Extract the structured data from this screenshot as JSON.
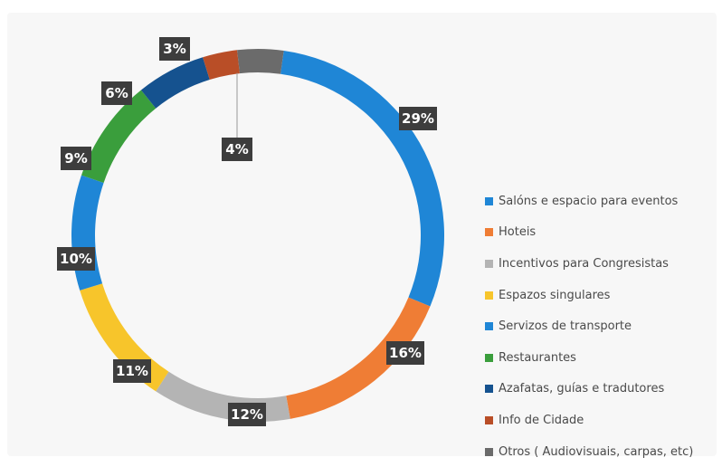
{
  "chart_data": {
    "type": "pie",
    "variant": "donut",
    "title": "",
    "legend_position": "right",
    "series": [
      {
        "name": "Salóns e espacio para eventos",
        "value": 29,
        "label": "29%",
        "color": "#1f86d6"
      },
      {
        "name": "Hoteis",
        "value": 16,
        "label": "16%",
        "color": "#ef7d35"
      },
      {
        "name": "Incentivos para Congresistas",
        "value": 12,
        "label": "12%",
        "color": "#b4b4b4"
      },
      {
        "name": "Espazos singulares",
        "value": 11,
        "label": "11%",
        "color": "#f7c52b"
      },
      {
        "name": "Servizos de transporte",
        "value": 10,
        "label": "10%",
        "color": "#1f86d6"
      },
      {
        "name": "Restaurantes",
        "value": 9,
        "label": "9%",
        "color": "#3a9e3c"
      },
      {
        "name": "Azafatas, guías e tradutores",
        "value": 6,
        "label": "6%",
        "color": "#15528f"
      },
      {
        "name": "Info de Cidade",
        "value": 3,
        "label": "3%",
        "color": "#b94e27"
      },
      {
        "name": "Otros ( Audiovisuais, carpas, etc)",
        "value": 4,
        "label": "4%",
        "color": "#6b6b6b"
      }
    ]
  }
}
